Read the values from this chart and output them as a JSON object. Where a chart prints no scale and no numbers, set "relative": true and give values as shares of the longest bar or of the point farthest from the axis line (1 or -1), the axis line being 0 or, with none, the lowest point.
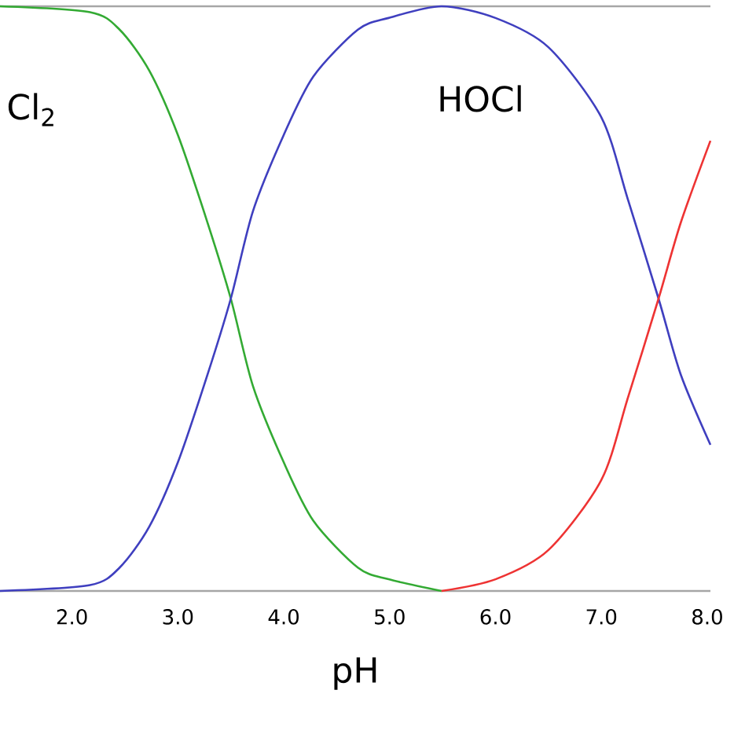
{
  "chart_data": {
    "type": "line",
    "relative": true,
    "xlabel": "pH",
    "xlim": [
      1.32,
      8.03
    ],
    "xticks": [
      {
        "value": 2,
        "label": "2.0"
      },
      {
        "value": 3,
        "label": "3.0"
      },
      {
        "value": 4,
        "label": "4.0"
      },
      {
        "value": 5,
        "label": "5.0"
      },
      {
        "value": 6,
        "label": "6.0"
      },
      {
        "value": 7,
        "label": "7.0"
      },
      {
        "value": 8,
        "label": "8.0"
      }
    ],
    "series": [
      {
        "name": "Cl$_{2}$",
        "color": "#33aa33",
        "x": [
          1.32,
          2.17,
          2.45,
          2.73,
          3.0,
          3.28,
          3.5,
          3.71,
          4.0,
          4.28,
          4.7,
          4.99,
          5.49
        ],
        "values": [
          1.0,
          0.99,
          0.96,
          0.89,
          0.78,
          0.63,
          0.5,
          0.35,
          0.22,
          0.12,
          0.04,
          0.02,
          0.0
        ]
      },
      {
        "name": "HOCl",
        "color": "#3f3fbf",
        "x": [
          1.32,
          2.17,
          2.45,
          2.73,
          3.0,
          3.28,
          3.5,
          3.71,
          4.0,
          4.28,
          4.7,
          4.99,
          5.49,
          6.0,
          6.5,
          7.0,
          7.25,
          7.54,
          7.75,
          8.03
        ],
        "values": [
          0.0,
          0.01,
          0.04,
          0.11,
          0.22,
          0.37,
          0.5,
          0.65,
          0.78,
          0.88,
          0.96,
          0.98,
          1.0,
          0.98,
          0.93,
          0.81,
          0.67,
          0.5,
          0.37,
          0.25
        ]
      },
      {
        "color": "#ee3333",
        "x": [
          5.49,
          6.0,
          6.5,
          7.0,
          7.25,
          7.54,
          7.75,
          8.03
        ],
        "values": [
          0.0,
          0.02,
          0.07,
          0.19,
          0.33,
          0.5,
          0.63,
          0.77
        ]
      }
    ]
  }
}
